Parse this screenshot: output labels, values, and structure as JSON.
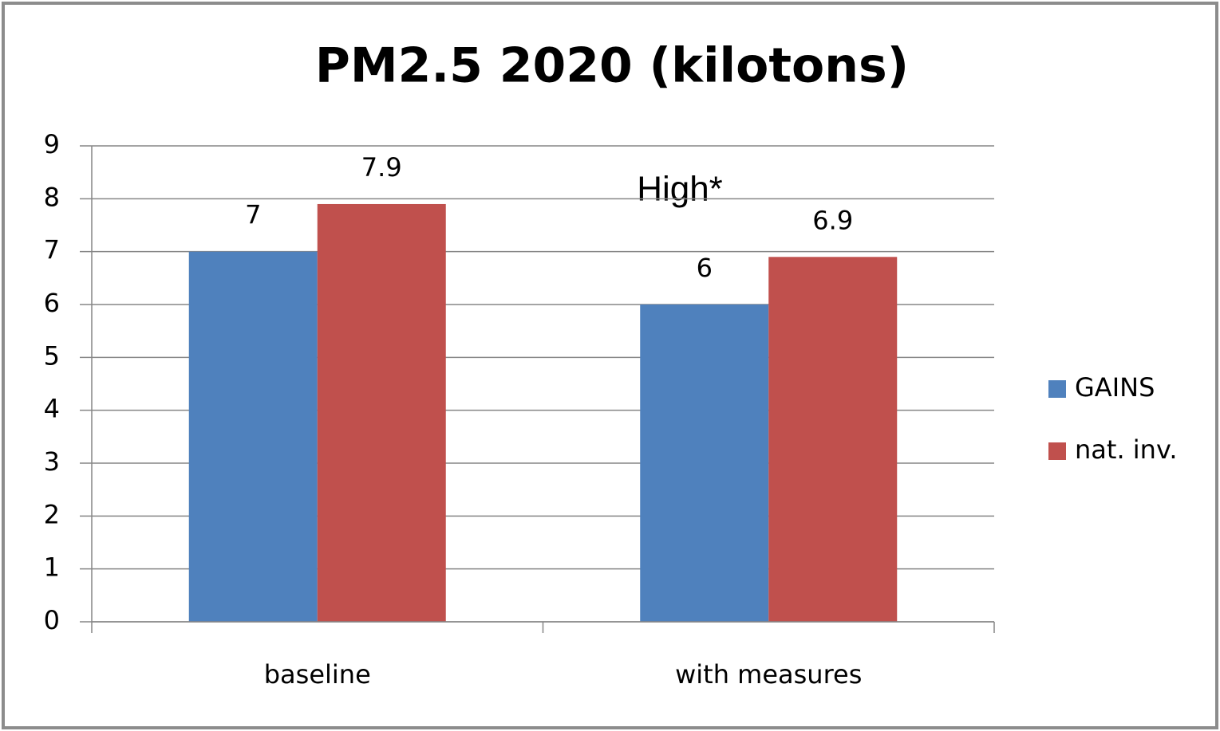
{
  "chart_data": {
    "type": "bar",
    "title": "PM2.5 2020 (kilotons)",
    "categories": [
      "baseline",
      "with measures"
    ],
    "series": [
      {
        "name": "GAINS",
        "color": "#4f81bd",
        "values": [
          7,
          6
        ]
      },
      {
        "name": "nat. inv.",
        "color": "#c0504d",
        "values": [
          7.9,
          6.9
        ]
      }
    ],
    "ylim": [
      0,
      9
    ],
    "yticks": [
      0,
      1,
      2,
      3,
      4,
      5,
      6,
      7,
      8,
      9
    ],
    "grid": true,
    "legend": "right",
    "annotation": "High*"
  }
}
